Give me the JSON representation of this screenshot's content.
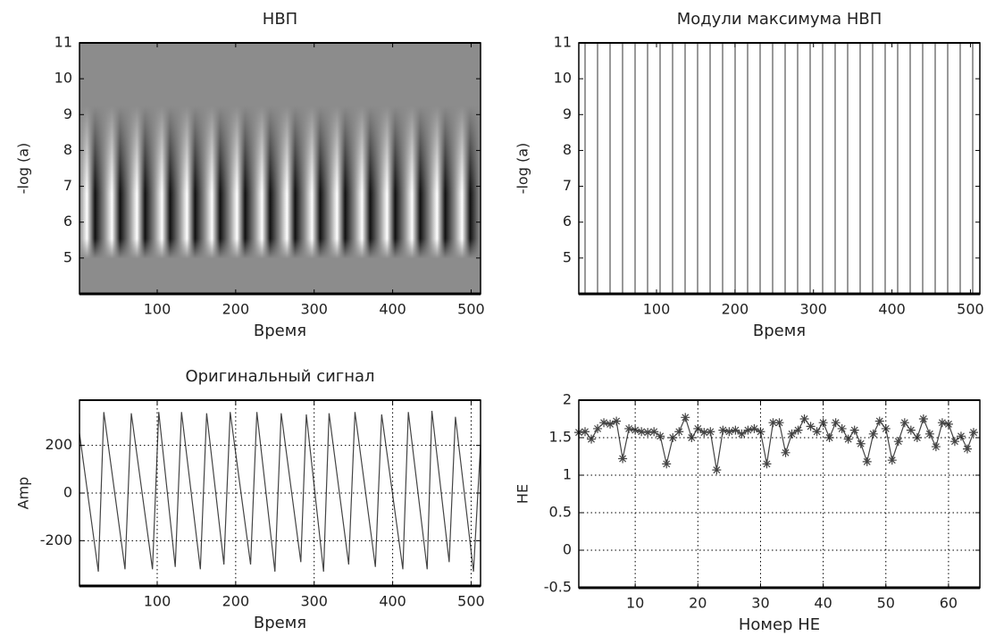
{
  "chart_data": [
    {
      "type": "heatmap",
      "title": "НВП",
      "xlabel": "Время",
      "ylabel": "-log (a)",
      "xlim": [
        1,
        512
      ],
      "xticks": [
        100,
        200,
        300,
        400,
        500
      ],
      "ylim": [
        4,
        11
      ],
      "yticks": [
        5,
        6,
        7,
        8,
        9,
        10,
        11
      ],
      "grid": false
    },
    {
      "type": "ridges",
      "title": "Модули максимума НВП",
      "xlabel": "Время",
      "ylabel": "-log (a)",
      "xlim": [
        1,
        512
      ],
      "xticks": [
        100,
        200,
        300,
        400,
        500
      ],
      "ylim": [
        4,
        11
      ],
      "yticks": [
        5,
        6,
        7,
        8,
        9,
        10,
        11
      ],
      "grid": false
    },
    {
      "type": "line",
      "title": "Оригинальный сигнал",
      "xlabel": "Время",
      "ylabel": "Amp",
      "xlim": [
        1,
        512
      ],
      "xticks": [
        100,
        200,
        300,
        400,
        500
      ],
      "ylim": [
        -390,
        390
      ],
      "yticks": [
        -200,
        0,
        200
      ],
      "grid": true,
      "series": [
        {
          "color": "#444444",
          "x": [
            1,
            25,
            32,
            59,
            67,
            94,
            102,
            123,
            131,
            155,
            163,
            185,
            193,
            219,
            227,
            250,
            258,
            283,
            290,
            312,
            319,
            344,
            352,
            378,
            386,
            413,
            420,
            444,
            450,
            472,
            480,
            503,
            512
          ],
          "values": [
            250,
            -330,
            340,
            -320,
            335,
            -320,
            340,
            -310,
            340,
            -320,
            335,
            -300,
            340,
            -300,
            340,
            -330,
            335,
            -290,
            330,
            -330,
            335,
            -300,
            340,
            -310,
            330,
            -320,
            340,
            -320,
            345,
            -290,
            320,
            -330,
            200
          ]
        }
      ]
    },
    {
      "type": "line",
      "xlabel": "Номер НЕ",
      "ylabel": "НЕ",
      "marker": "star",
      "xlim": [
        1,
        65
      ],
      "xticks": [
        10,
        20,
        30,
        40,
        50,
        60
      ],
      "ylim": [
        -0.5,
        2
      ],
      "yticks": [
        -0.5,
        0,
        0.5,
        1,
        1.5,
        2
      ],
      "grid": true,
      "series": [
        {
          "color": "#444444",
          "x": [
            1,
            2,
            3,
            4,
            5,
            6,
            7,
            8,
            9,
            10,
            11,
            12,
            13,
            14,
            15,
            16,
            17,
            18,
            19,
            20,
            21,
            22,
            23,
            24,
            25,
            26,
            27,
            28,
            29,
            30,
            31,
            32,
            33,
            34,
            35,
            36,
            37,
            38,
            39,
            40,
            41,
            42,
            43,
            44,
            45,
            46,
            47,
            48,
            49,
            50,
            51,
            52,
            53,
            54,
            55,
            56,
            57,
            58,
            59,
            60,
            61,
            62,
            63,
            64
          ],
          "values": [
            1.57,
            1.58,
            1.48,
            1.62,
            1.7,
            1.68,
            1.72,
            1.22,
            1.62,
            1.6,
            1.58,
            1.57,
            1.58,
            1.52,
            1.15,
            1.5,
            1.58,
            1.77,
            1.5,
            1.62,
            1.57,
            1.58,
            1.07,
            1.6,
            1.58,
            1.6,
            1.55,
            1.6,
            1.62,
            1.58,
            1.15,
            1.7,
            1.7,
            1.3,
            1.55,
            1.6,
            1.75,
            1.65,
            1.58,
            1.7,
            1.5,
            1.7,
            1.62,
            1.48,
            1.6,
            1.42,
            1.18,
            1.55,
            1.72,
            1.62,
            1.2,
            1.45,
            1.7,
            1.6,
            1.5,
            1.75,
            1.55,
            1.38,
            1.7,
            1.68,
            1.45,
            1.52,
            1.35,
            1.57
          ]
        }
      ]
    }
  ]
}
